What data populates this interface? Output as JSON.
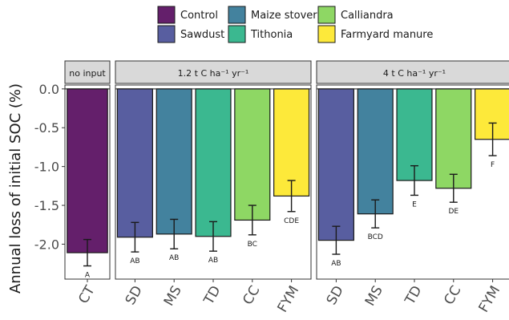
{
  "chart_data": {
    "type": "bar",
    "ylabel": "Annual loss of initial SOC (%)",
    "ylim": [
      -2.45,
      0.05
    ],
    "yticks": [
      0.0,
      -0.5,
      -1.0,
      -1.5,
      -2.0
    ],
    "ytick_labels": [
      "0.0",
      "-0.5",
      "-1.0",
      "-1.5",
      "-2.0"
    ],
    "grid": false,
    "legend": {
      "position": "top",
      "entries": [
        {
          "label": "Control",
          "color": "#641f6b"
        },
        {
          "label": "Sawdust",
          "color": "#585ea0"
        },
        {
          "label": "Maize stover",
          "color": "#43829e"
        },
        {
          "label": "Tithonia",
          "color": "#3bb890"
        },
        {
          "label": "Calliandra",
          "color": "#8ed764"
        },
        {
          "label": "Farmyard manure",
          "color": "#fde93a"
        }
      ]
    },
    "panels": [
      {
        "strip": "no input",
        "categories": [
          "CT"
        ],
        "values": [
          -2.11
        ],
        "errors": [
          0.17
        ],
        "letters": [
          "A"
        ],
        "colors": [
          "#641f6b"
        ]
      },
      {
        "strip": "1.2 t C  ha⁻¹ yr⁻¹",
        "categories": [
          "SD",
          "MS",
          "TD",
          "CC",
          "FYM"
        ],
        "values": [
          -1.91,
          -1.87,
          -1.9,
          -1.69,
          -1.38
        ],
        "errors": [
          0.19,
          0.19,
          0.19,
          0.19,
          0.2
        ],
        "letters": [
          "AB",
          "AB",
          "AB",
          "BC",
          "CDE"
        ],
        "colors": [
          "#585ea0",
          "#43829e",
          "#3bb890",
          "#8ed764",
          "#fde93a"
        ]
      },
      {
        "strip": "4 t C  ha⁻¹ yr⁻¹",
        "categories": [
          "SD",
          "MS",
          "TD",
          "CC",
          "FYM"
        ],
        "values": [
          -1.95,
          -1.61,
          -1.18,
          -1.28,
          -0.65
        ],
        "errors": [
          0.18,
          0.18,
          0.19,
          0.18,
          0.21
        ],
        "letters": [
          "AB",
          "BCD",
          "E",
          "DE",
          "F"
        ],
        "colors": [
          "#585ea0",
          "#43829e",
          "#3bb890",
          "#8ed764",
          "#fde93a"
        ]
      }
    ]
  }
}
